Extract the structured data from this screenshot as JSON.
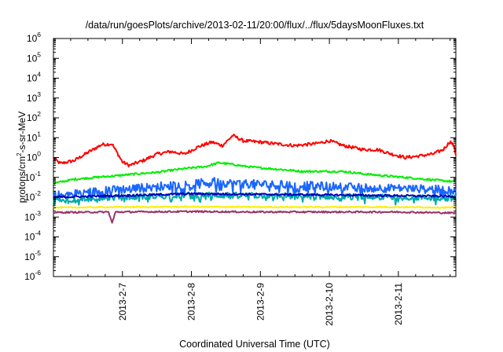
{
  "chart_data": {
    "type": "line",
    "title": "/data/run/goesPlots/archive/2013-02-11/20:00/flux/../flux/5daysMoonFluxes.txt",
    "xlabel": "Coordinated Universal Time (UTC)",
    "ylabel": {
      "prefix": "protons/cm",
      "sup": "2",
      "suffix": "-s-sr-MeV"
    },
    "yscale": "log",
    "ylim": [
      1e-06,
      1000000.0
    ],
    "xlim": [
      2013.0206,
      2013.1106
    ],
    "x_unit": "2013-02-06 00:00 to 2013-02-11 20:00 UTC",
    "y_ticks": [
      {
        "base": "10",
        "exp": "6",
        "value": 1000000.0
      },
      {
        "base": "10",
        "exp": "5",
        "value": 100000.0
      },
      {
        "base": "10",
        "exp": "4",
        "value": 10000.0
      },
      {
        "base": "10",
        "exp": "3",
        "value": 1000.0
      },
      {
        "base": "10",
        "exp": "2",
        "value": 100.0
      },
      {
        "base": "10",
        "exp": "1",
        "value": 10.0
      },
      {
        "base": "10",
        "exp": "0",
        "value": 1
      },
      {
        "base": "10",
        "exp": "-1",
        "value": 0.1
      },
      {
        "base": "10",
        "exp": "-2",
        "value": 0.01
      },
      {
        "base": "10",
        "exp": "-3",
        "value": 0.001
      },
      {
        "base": "10",
        "exp": "-4",
        "value": 0.0001
      },
      {
        "base": "10",
        "exp": "-5",
        "value": 1e-05
      },
      {
        "base": "10",
        "exp": "-6",
        "value": 1e-06
      }
    ],
    "x_ticks": [
      {
        "label": "2013-2-7",
        "day": 1
      },
      {
        "label": "2013-2-8",
        "day": 2
      },
      {
        "label": "2013-2-9",
        "day": 3
      },
      {
        "label": "2013-2-10",
        "day": 4
      },
      {
        "label": "2013-2-11",
        "day": 5
      }
    ],
    "x_range_days": [
      0,
      5.833
    ],
    "grid": false,
    "series": [
      {
        "color": "#ff0000",
        "noise": 0.08,
        "points": [
          [
            0,
            0.9
          ],
          [
            0.1,
            0.5
          ],
          [
            0.3,
            0.7
          ],
          [
            0.5,
            1.8
          ],
          [
            0.7,
            4.5
          ],
          [
            0.85,
            4.8
          ],
          [
            1.0,
            0.6
          ],
          [
            1.1,
            0.4
          ],
          [
            1.3,
            0.7
          ],
          [
            1.5,
            1.5
          ],
          [
            1.7,
            2.0
          ],
          [
            1.9,
            1.5
          ],
          [
            2.1,
            3.5
          ],
          [
            2.3,
            6.0
          ],
          [
            2.45,
            4.0
          ],
          [
            2.6,
            13
          ],
          [
            2.75,
            7.0
          ],
          [
            3.0,
            6.0
          ],
          [
            3.2,
            5.0
          ],
          [
            3.5,
            4.0
          ],
          [
            3.8,
            5.0
          ],
          [
            4.0,
            7.0
          ],
          [
            4.2,
            4.0
          ],
          [
            4.5,
            2.5
          ],
          [
            4.7,
            2.5
          ],
          [
            4.9,
            1.5
          ],
          [
            5.1,
            1.0
          ],
          [
            5.3,
            1.2
          ],
          [
            5.5,
            1.5
          ],
          [
            5.65,
            2.5
          ],
          [
            5.75,
            6.5
          ],
          [
            5.8,
            4.0
          ],
          [
            5.833,
            1.4
          ]
        ]
      },
      {
        "color": "#00ee00",
        "noise": 0.05,
        "points": [
          [
            0,
            0.05
          ],
          [
            0.3,
            0.08
          ],
          [
            0.6,
            0.1
          ],
          [
            0.9,
            0.12
          ],
          [
            1.2,
            0.15
          ],
          [
            1.5,
            0.18
          ],
          [
            1.8,
            0.25
          ],
          [
            2.0,
            0.3
          ],
          [
            2.2,
            0.35
          ],
          [
            2.4,
            0.55
          ],
          [
            2.6,
            0.45
          ],
          [
            2.8,
            0.35
          ],
          [
            3.0,
            0.3
          ],
          [
            3.3,
            0.25
          ],
          [
            3.6,
            0.2
          ],
          [
            3.9,
            0.2
          ],
          [
            4.2,
            0.2
          ],
          [
            4.5,
            0.15
          ],
          [
            4.8,
            0.12
          ],
          [
            5.1,
            0.1
          ],
          [
            5.4,
            0.08
          ],
          [
            5.833,
            0.06
          ]
        ]
      },
      {
        "color": "#1a66ff",
        "noise": 0.22,
        "points": [
          [
            0,
            0.012
          ],
          [
            0.5,
            0.018
          ],
          [
            1.0,
            0.025
          ],
          [
            1.5,
            0.035
          ],
          [
            2.0,
            0.045
          ],
          [
            2.3,
            0.06
          ],
          [
            2.6,
            0.05
          ],
          [
            3.0,
            0.045
          ],
          [
            3.5,
            0.04
          ],
          [
            4.0,
            0.035
          ],
          [
            4.5,
            0.03
          ],
          [
            5.0,
            0.028
          ],
          [
            5.5,
            0.025
          ],
          [
            5.833,
            0.02
          ]
        ]
      },
      {
        "color": "#00aaaa",
        "noise": 0.15,
        "points": [
          [
            0,
            0.007
          ],
          [
            1.0,
            0.01
          ],
          [
            2.0,
            0.013
          ],
          [
            3.0,
            0.012
          ],
          [
            4.0,
            0.011
          ],
          [
            5.0,
            0.01
          ],
          [
            5.833,
            0.009
          ]
        ]
      },
      {
        "color": "#0000bb",
        "noise": 0.05,
        "points": [
          [
            0,
            0.01
          ],
          [
            1.0,
            0.012
          ],
          [
            2.0,
            0.015
          ],
          [
            3.0,
            0.014
          ],
          [
            4.0,
            0.013
          ],
          [
            5.0,
            0.012
          ],
          [
            5.833,
            0.011
          ]
        ]
      },
      {
        "color": "#ffee00",
        "noise": 0.03,
        "points": [
          [
            0,
            0.003
          ],
          [
            1.0,
            0.0032
          ],
          [
            2.0,
            0.0033
          ],
          [
            3.0,
            0.0032
          ],
          [
            4.0,
            0.0032
          ],
          [
            5.0,
            0.0032
          ],
          [
            5.833,
            0.003
          ]
        ]
      },
      {
        "color": "#993366",
        "noise": 0.04,
        "points": [
          [
            0,
            0.0017
          ],
          [
            0.8,
            0.0018
          ],
          [
            0.85,
            0.0005
          ],
          [
            0.9,
            0.0018
          ],
          [
            2.0,
            0.0019
          ],
          [
            3.0,
            0.0018
          ],
          [
            4.0,
            0.0018
          ],
          [
            5.0,
            0.0018
          ],
          [
            5.833,
            0.0016
          ]
        ]
      }
    ]
  }
}
